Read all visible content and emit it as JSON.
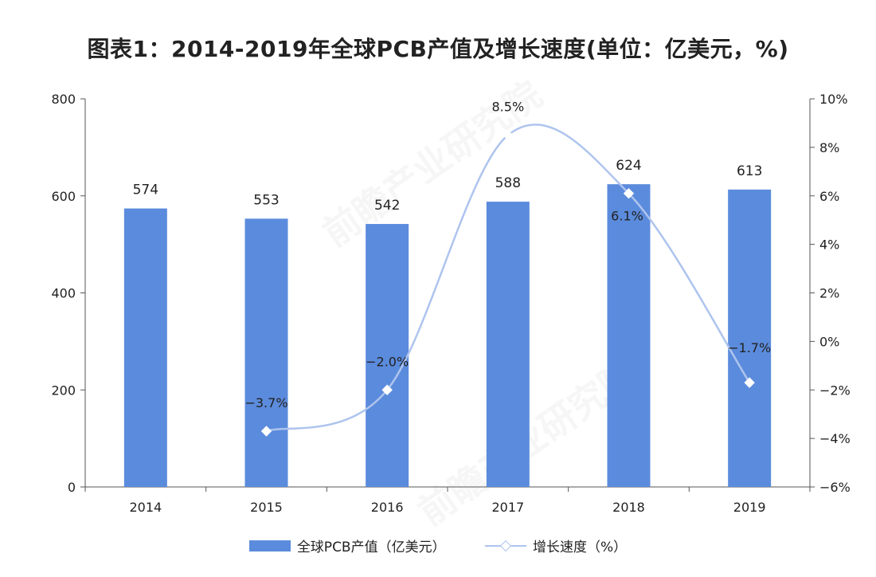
{
  "title": "图表1：2014-2019年全球PCB产值及增长速度(单位：亿美元，%)",
  "colors": {
    "bar": "#5b8bdc",
    "line": "#aec4ee",
    "axis": "#555555",
    "text": "#222222"
  },
  "watermark": "前瞻产业研究院",
  "chart_data": {
    "type": "bar",
    "categories": [
      "2014",
      "2015",
      "2016",
      "2017",
      "2018",
      "2019"
    ],
    "series": [
      {
        "name": "全球PCB产值（亿美元）",
        "type": "bar",
        "axis": "left",
        "values": [
          574,
          553,
          542,
          588,
          624,
          613
        ],
        "labels": [
          "574",
          "553",
          "542",
          "588",
          "624",
          "613"
        ]
      },
      {
        "name": "增长速度（%）",
        "type": "line",
        "axis": "right",
        "smooth": true,
        "marker": "diamond",
        "values": [
          null,
          -3.7,
          -2.0,
          8.5,
          6.1,
          -1.7
        ],
        "labels": [
          "",
          "−3.7%",
          "−2.0%",
          "8.5%",
          "6.1%",
          "−1.7%"
        ]
      }
    ],
    "y_left": {
      "ylim": [
        0,
        800
      ],
      "ticks": [
        "0",
        "200",
        "400",
        "600",
        "800"
      ]
    },
    "y_right": {
      "ylim": [
        -6,
        10
      ],
      "ticks": [
        "−6%",
        "−4%",
        "−2%",
        "0%",
        "2%",
        "4%",
        "6%",
        "8%",
        "10%"
      ]
    },
    "grid": false,
    "legend": "bottom"
  }
}
